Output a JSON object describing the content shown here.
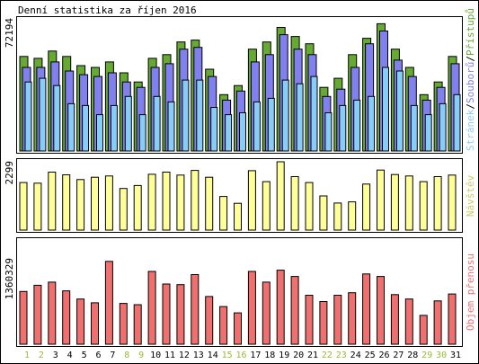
{
  "title": "Denní statistika za říjen 2016",
  "colors": {
    "background": "#ffffff",
    "border": "#000000",
    "hits": "#66aa33",
    "files": "#8080ee",
    "pages": "#88ccf8",
    "visits": "#ffff99",
    "kbytes": "#f07070",
    "day_weekday": "#000000",
    "day_weekend": "#99bb33"
  },
  "chart_data": [
    {
      "type": "bar",
      "name": "hits-files-pages",
      "ymax_label": "72194",
      "ymax": 72194,
      "legend": [
        "Přístupů",
        "Souborů",
        "Stránek"
      ],
      "legend_separator": "/",
      "categories": [
        "1",
        "2",
        "3",
        "4",
        "5",
        "6",
        "7",
        "8",
        "9",
        "10",
        "11",
        "12",
        "13",
        "14",
        "15",
        "16",
        "17",
        "18",
        "19",
        "20",
        "21",
        "22",
        "23",
        "24",
        "25",
        "26",
        "27",
        "28",
        "29",
        "30",
        "31"
      ],
      "weekend_days": [
        "1",
        "2",
        "8",
        "9",
        "15",
        "16",
        "22",
        "23",
        "29",
        "30"
      ],
      "series": [
        {
          "name": "Přístupů",
          "values": [
            52000,
            51000,
            55000,
            52000,
            47000,
            46000,
            49000,
            43000,
            38000,
            51000,
            53000,
            60000,
            61000,
            45000,
            31000,
            36000,
            56000,
            60000,
            68000,
            63000,
            59000,
            35000,
            40000,
            53000,
            62000,
            70000,
            56000,
            46000,
            31000,
            38000,
            52000
          ]
        },
        {
          "name": "Souborů",
          "values": [
            46000,
            46000,
            49000,
            44000,
            42000,
            41000,
            43000,
            38000,
            35000,
            46000,
            48000,
            56000,
            57000,
            41000,
            28000,
            33000,
            49000,
            53000,
            64000,
            56000,
            53000,
            30000,
            34000,
            46000,
            59000,
            66000,
            50000,
            41000,
            28000,
            35000,
            48000
          ]
        },
        {
          "name": "Stránek",
          "values": [
            38000,
            40000,
            36000,
            26000,
            25000,
            20000,
            25000,
            30000,
            20000,
            30000,
            27000,
            39000,
            39000,
            24000,
            20000,
            21000,
            27000,
            29000,
            39000,
            37000,
            41000,
            21000,
            25000,
            28000,
            30000,
            46000,
            44000,
            25000,
            20000,
            26000,
            31000
          ]
        }
      ]
    },
    {
      "type": "bar",
      "name": "visits",
      "ymax_label": "2299",
      "ymax": 2299,
      "legend": [
        "Návštěv"
      ],
      "categories": [
        "1",
        "2",
        "3",
        "4",
        "5",
        "6",
        "7",
        "8",
        "9",
        "10",
        "11",
        "12",
        "13",
        "14",
        "15",
        "16",
        "17",
        "18",
        "19",
        "20",
        "21",
        "22",
        "23",
        "24",
        "25",
        "26",
        "27",
        "28",
        "29",
        "30",
        "31"
      ],
      "series": [
        {
          "name": "Návštěv",
          "values": [
            1600,
            1580,
            1950,
            1860,
            1700,
            1780,
            1820,
            1400,
            1500,
            1880,
            1950,
            1850,
            2010,
            1780,
            1130,
            900,
            2000,
            1630,
            2300,
            1800,
            1600,
            1150,
            910,
            950,
            1550,
            2020,
            1870,
            1820,
            1630,
            1800,
            1850
          ]
        }
      ]
    },
    {
      "type": "bar",
      "name": "kbytes",
      "ymax_label": "1360329",
      "ymax": 1360329,
      "legend": [
        "Objem přenosu"
      ],
      "categories": [
        "1",
        "2",
        "3",
        "4",
        "5",
        "6",
        "7",
        "8",
        "9",
        "10",
        "11",
        "12",
        "13",
        "14",
        "15",
        "16",
        "17",
        "18",
        "19",
        "20",
        "21",
        "22",
        "23",
        "24",
        "25",
        "26",
        "27",
        "28",
        "29",
        "30",
        "31"
      ],
      "series": [
        {
          "name": "Objem přenosu",
          "values": [
            840000,
            940000,
            990000,
            850000,
            720000,
            660000,
            1320000,
            650000,
            630000,
            1160000,
            960000,
            950000,
            1110000,
            760000,
            600000,
            500000,
            1160000,
            990000,
            1180000,
            1080000,
            780000,
            680000,
            780000,
            820000,
            1120000,
            1080000,
            790000,
            720000,
            460000,
            690000,
            800000
          ]
        }
      ]
    }
  ]
}
